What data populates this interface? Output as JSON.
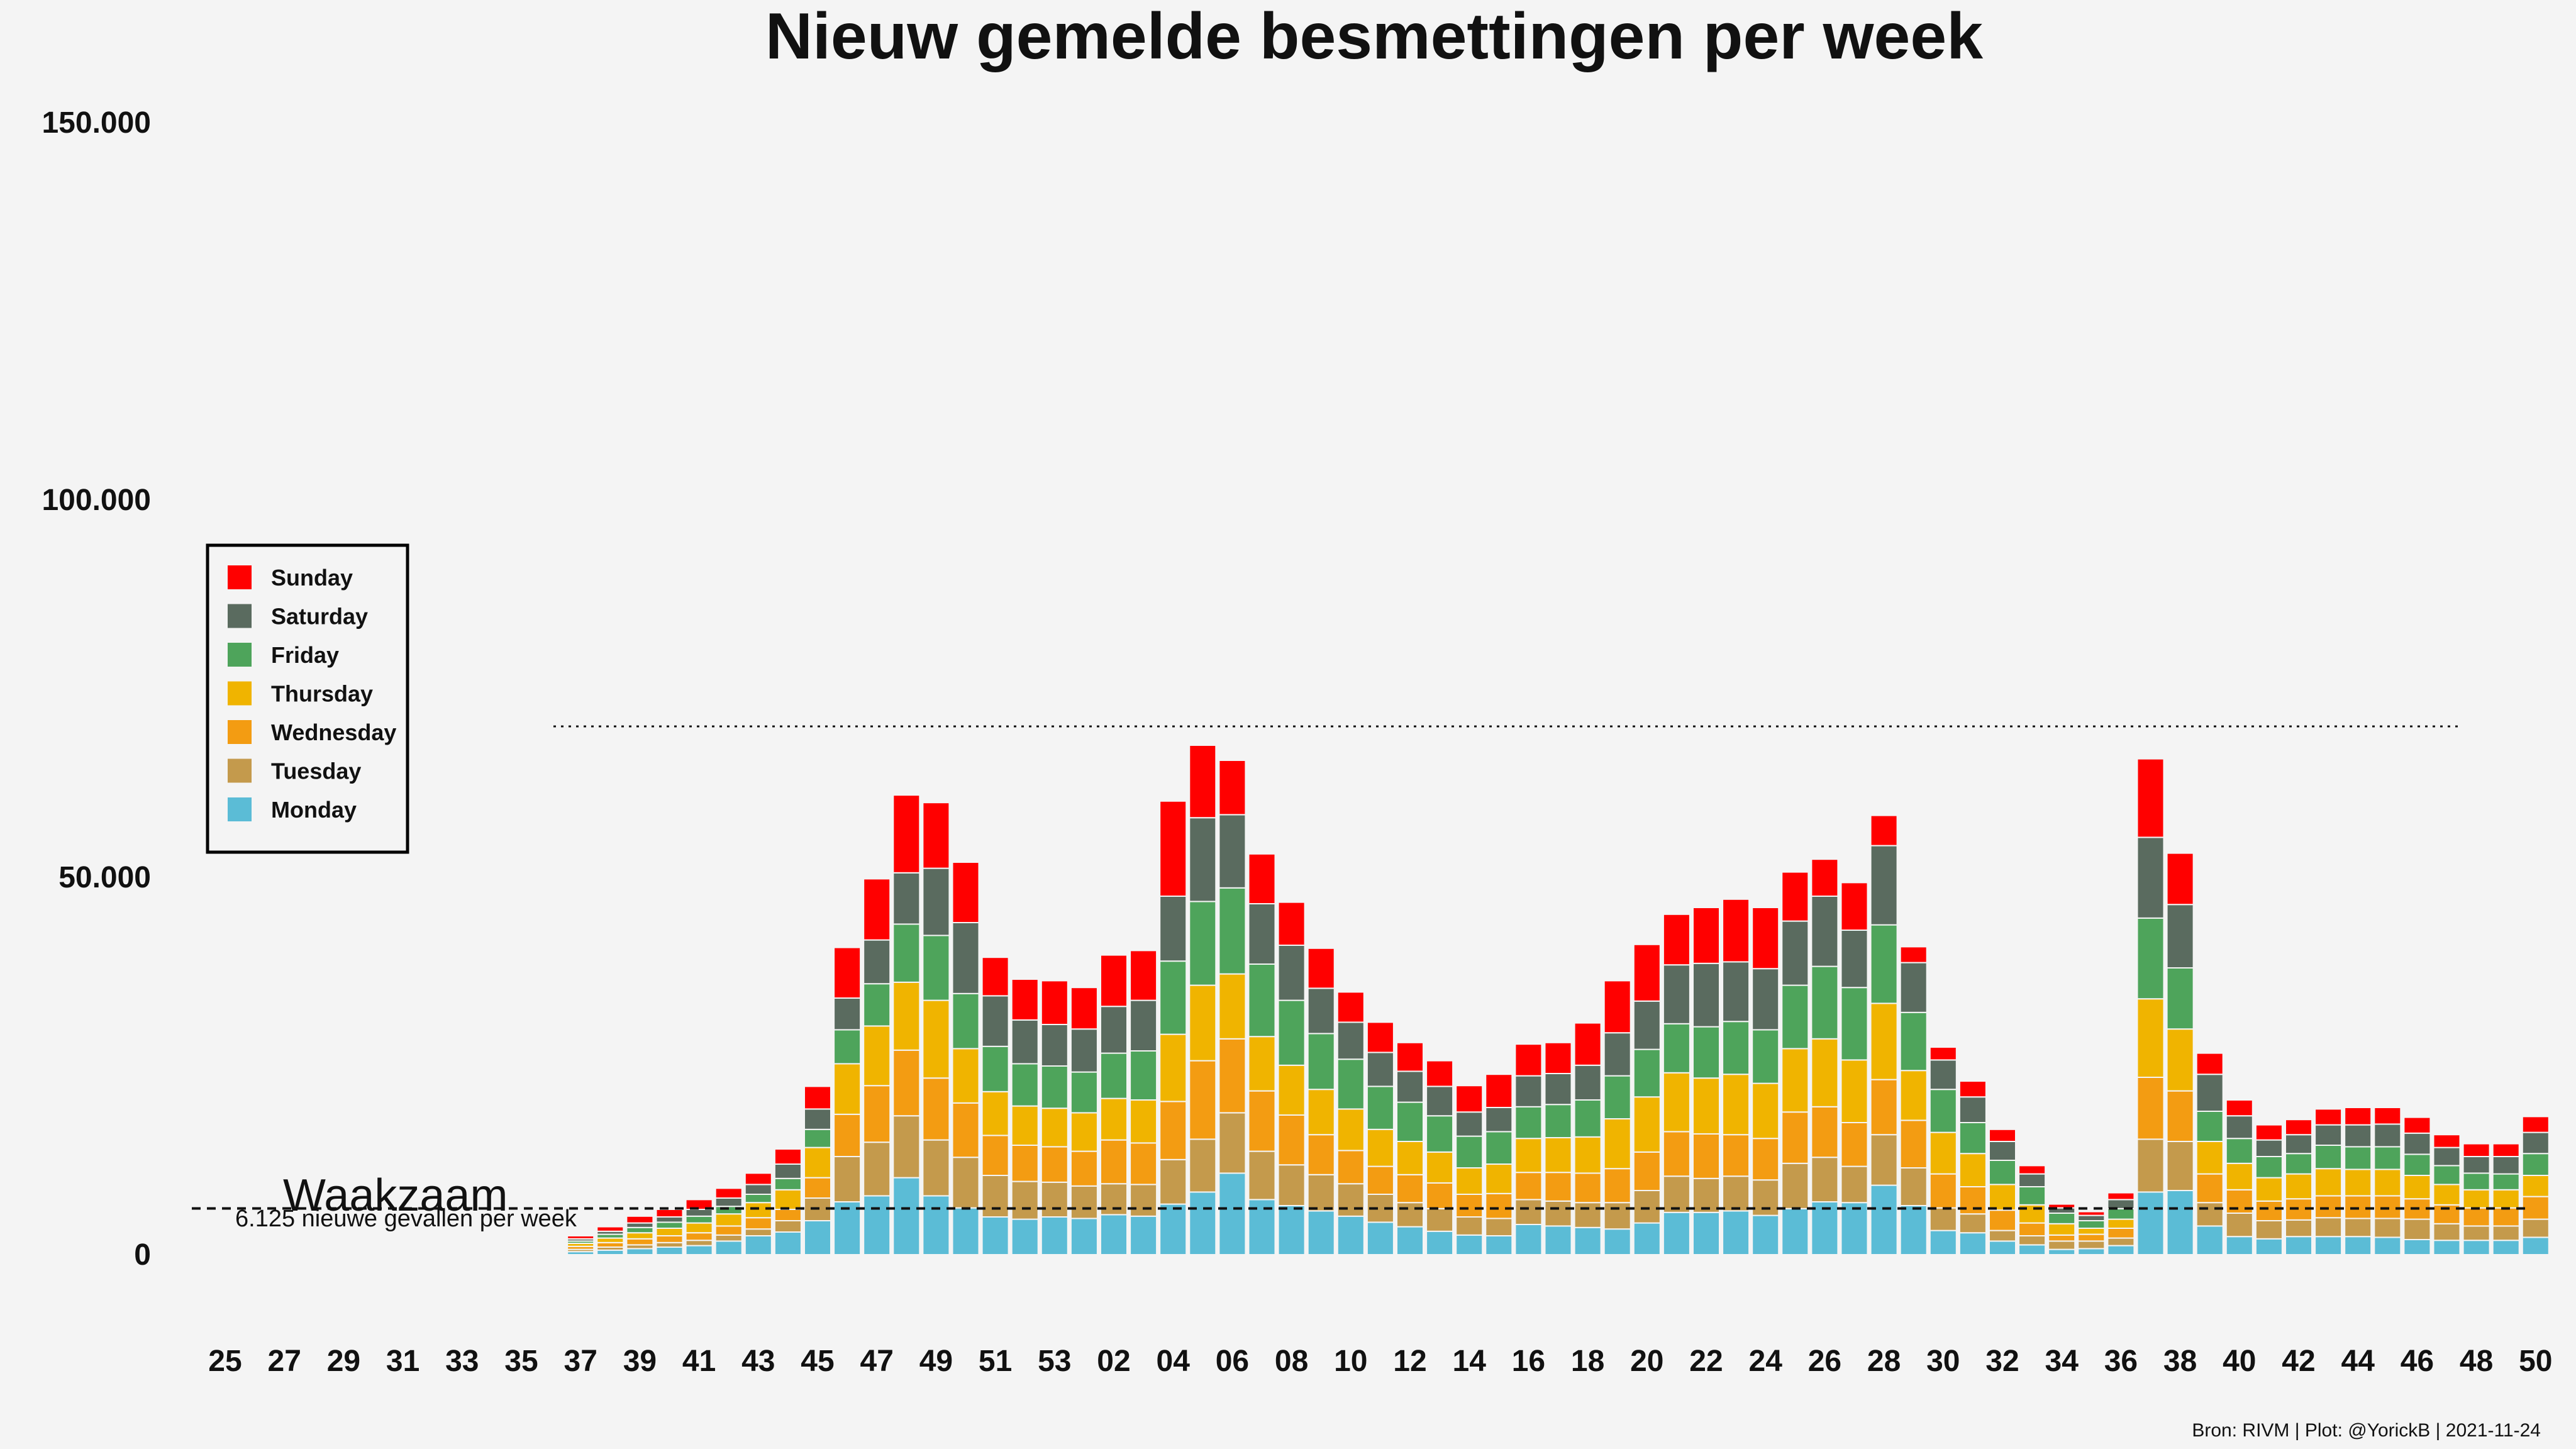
{
  "chart_data": {
    "type": "bar",
    "stacked": true,
    "title": "Nieuw gemelde besmettingen per week",
    "xlabel": "",
    "ylabel": "",
    "ylim": [
      0,
      150000
    ],
    "yticks": [
      {
        "value": 0,
        "label": "0"
      },
      {
        "value": 50000,
        "label": "50.000"
      },
      {
        "value": 100000,
        "label": "100.000"
      },
      {
        "value": 150000,
        "label": "150.000"
      }
    ],
    "xtick_labels": [
      "25",
      "27",
      "29",
      "31",
      "33",
      "35",
      "37",
      "39",
      "41",
      "43",
      "45",
      "47",
      "49",
      "51",
      "53",
      "02",
      "04",
      "06",
      "08",
      "10",
      "12",
      "14",
      "16",
      "18",
      "20",
      "22",
      "24",
      "26",
      "28",
      "30",
      "32",
      "34",
      "36",
      "38",
      "40",
      "42",
      "44",
      "46",
      "48",
      "50"
    ],
    "categories": [
      "25",
      "26",
      "27",
      "28",
      "29",
      "30",
      "31",
      "32",
      "33",
      "34",
      "35",
      "36",
      "37",
      "38",
      "39",
      "40",
      "41",
      "42",
      "43",
      "44",
      "45",
      "46",
      "47",
      "48",
      "49",
      "50",
      "51",
      "52",
      "53",
      "01",
      "02",
      "03",
      "04",
      "05",
      "06",
      "07",
      "08",
      "09",
      "10",
      "11",
      "12",
      "13",
      "14",
      "15",
      "16",
      "17",
      "18",
      "19",
      "20",
      "21",
      "22",
      "23",
      "24",
      "25",
      "26",
      "27",
      "28",
      "29",
      "30",
      "31",
      "32",
      "33",
      "34",
      "35",
      "36",
      "37",
      "38",
      "39",
      "40",
      "41",
      "42",
      "43",
      "44",
      "45",
      "46",
      "47",
      "48",
      "49",
      "50"
    ],
    "series": [
      {
        "name": "Monday",
        "color": "#5bbcd6",
        "values": [
          0,
          0,
          0,
          0,
          0,
          0,
          0,
          0,
          0,
          0,
          0,
          0,
          400,
          600,
          800,
          1000,
          1200,
          1800,
          2500,
          3000,
          4500,
          7000,
          7800,
          10200,
          7800,
          6200,
          5000,
          4700,
          5000,
          4800,
          5300,
          5100,
          6700,
          8300,
          10800,
          7300,
          6500,
          5800,
          5100,
          4300,
          3700,
          3100,
          2600,
          2500,
          4000,
          3800,
          3600,
          3400,
          4200,
          5600,
          5600,
          5800,
          5200,
          6100,
          7000,
          6900,
          9200,
          6500,
          3200,
          2900,
          1800,
          1300,
          700,
          800,
          1200,
          8300,
          8500,
          3800,
          2400,
          2100,
          2400,
          2400,
          2400,
          2300,
          2000,
          1900,
          1900,
          1900,
          2300
        ]
      },
      {
        "name": "Tuesday",
        "color": "#c49a4c",
        "values": [
          0,
          0,
          0,
          0,
          0,
          0,
          0,
          0,
          0,
          0,
          0,
          0,
          300,
          400,
          500,
          600,
          700,
          800,
          900,
          1500,
          3000,
          6000,
          7100,
          8200,
          7400,
          6700,
          5500,
          5000,
          4600,
          4300,
          4100,
          4200,
          5900,
          7000,
          8000,
          6400,
          5400,
          4800,
          4300,
          3700,
          3200,
          3000,
          2400,
          2300,
          3300,
          3300,
          3300,
          3500,
          4300,
          4800,
          4500,
          4600,
          4700,
          6000,
          5900,
          4800,
          6700,
          5000,
          3000,
          2500,
          1400,
          1200,
          1100,
          1000,
          1000,
          7000,
          6500,
          3100,
          3100,
          2400,
          2200,
          2500,
          2400,
          2500,
          2700,
          2200,
          1900,
          1900,
          2400
        ]
      },
      {
        "name": "Wednesday",
        "color": "#f39c12",
        "values": [
          0,
          0,
          0,
          0,
          0,
          0,
          0,
          0,
          0,
          0,
          0,
          0,
          400,
          600,
          800,
          900,
          1000,
          1200,
          1500,
          1500,
          2700,
          5600,
          7500,
          8700,
          8200,
          7200,
          5300,
          4800,
          4700,
          4600,
          5800,
          5500,
          7700,
          10400,
          9800,
          8000,
          6600,
          5300,
          4400,
          3700,
          3700,
          3400,
          3000,
          3300,
          3600,
          3800,
          3900,
          4500,
          5100,
          5900,
          5900,
          5500,
          5500,
          6800,
          6700,
          5800,
          7300,
          6300,
          4500,
          3600,
          2700,
          1700,
          800,
          900,
          1300,
          8200,
          6700,
          3800,
          3100,
          2600,
          2800,
          2900,
          3000,
          3000,
          2700,
          2500,
          2400,
          2400,
          3000
        ]
      },
      {
        "name": "Thursday",
        "color": "#f0b400",
        "values": [
          0,
          0,
          0,
          0,
          0,
          0,
          0,
          0,
          0,
          0,
          0,
          0,
          400,
          600,
          800,
          1000,
          1300,
          1600,
          2000,
          2600,
          4000,
          6700,
          7900,
          9000,
          10300,
          7200,
          5800,
          5200,
          5100,
          5100,
          5500,
          5700,
          8900,
          10000,
          8600,
          7200,
          6600,
          6000,
          5500,
          4900,
          4400,
          4100,
          3500,
          3900,
          4500,
          4600,
          4800,
          6600,
          7300,
          7800,
          7400,
          8000,
          7300,
          8400,
          9000,
          8300,
          10100,
          6600,
          5500,
          4400,
          3400,
          2400,
          1500,
          800,
          1200,
          10400,
          8200,
          4300,
          3500,
          3100,
          3300,
          3600,
          3500,
          3500,
          3100,
          2700,
          2400,
          2400,
          2800
        ]
      },
      {
        "name": "Friday",
        "color": "#4ea45b",
        "values": [
          0,
          0,
          0,
          0,
          0,
          0,
          0,
          0,
          0,
          0,
          0,
          0,
          300,
          500,
          700,
          800,
          900,
          1000,
          1100,
          1500,
          2400,
          4500,
          5600,
          7700,
          8600,
          7300,
          6000,
          5600,
          5600,
          5400,
          6000,
          6500,
          9700,
          11100,
          11400,
          9600,
          8600,
          7400,
          6600,
          5700,
          5200,
          4800,
          4200,
          4300,
          4200,
          4400,
          4900,
          5700,
          6300,
          6500,
          6800,
          7000,
          7100,
          8400,
          9600,
          9600,
          10400,
          7700,
          5700,
          4100,
          3200,
          2400,
          1400,
          1000,
          1400,
          10700,
          8100,
          4000,
          3300,
          2800,
          2700,
          3100,
          3000,
          3000,
          2800,
          2500,
          2200,
          2100,
          2900
        ]
      },
      {
        "name": "Saturday",
        "color": "#5a6b5f",
        "values": [
          0,
          0,
          0,
          0,
          0,
          0,
          0,
          0,
          0,
          0,
          0,
          0,
          300,
          400,
          600,
          700,
          900,
          1100,
          1300,
          1900,
          2700,
          4200,
          5800,
          6800,
          8900,
          9400,
          6700,
          5800,
          5500,
          5700,
          6200,
          6700,
          8600,
          11100,
          9700,
          8000,
          7300,
          6000,
          4900,
          4500,
          4100,
          3900,
          3200,
          3200,
          4100,
          4100,
          4600,
          5700,
          6400,
          7800,
          8400,
          7900,
          8100,
          8500,
          9300,
          7600,
          10500,
          6600,
          3900,
          3400,
          2500,
          1700,
          700,
          700,
          1200,
          10700,
          8400,
          4900,
          3000,
          2200,
          2500,
          2700,
          2900,
          3000,
          2800,
          2400,
          2200,
          2300,
          2800
        ]
      },
      {
        "name": "Sunday",
        "color": "#ff0000",
        "values": [
          0,
          0,
          0,
          0,
          0,
          0,
          0,
          0,
          0,
          0,
          0,
          0,
          400,
          600,
          900,
          1000,
          1300,
          1300,
          1500,
          2000,
          3000,
          6700,
          8100,
          10300,
          8700,
          8000,
          5100,
          5400,
          5800,
          5500,
          6800,
          6600,
          12600,
          9600,
          7200,
          6600,
          5700,
          5300,
          4000,
          4000,
          3800,
          3400,
          3500,
          4400,
          4200,
          4100,
          5600,
          6900,
          7500,
          6700,
          7400,
          8300,
          8100,
          6500,
          4900,
          6300,
          4000,
          2100,
          1700,
          2100,
          1600,
          1100,
          500,
          500,
          900,
          10400,
          6800,
          2800,
          2100,
          2000,
          2000,
          2100,
          2300,
          2200,
          2100,
          1700,
          1700,
          1700,
          2100
        ]
      }
    ],
    "reference_lines": [
      {
        "y": 6125,
        "style": "dashed",
        "label": "Waakzaam",
        "sublabel": "6.125 nieuwe gevallen per week"
      },
      {
        "y": 70000,
        "style": "dotted"
      }
    ],
    "legend": {
      "position": "left",
      "entries": [
        "Sunday",
        "Saturday",
        "Friday",
        "Thursday",
        "Wednesday",
        "Tuesday",
        "Monday"
      ]
    },
    "grid": false,
    "caption": "Bron: RIVM | Plot: @YorickB |  2021-11-24"
  }
}
